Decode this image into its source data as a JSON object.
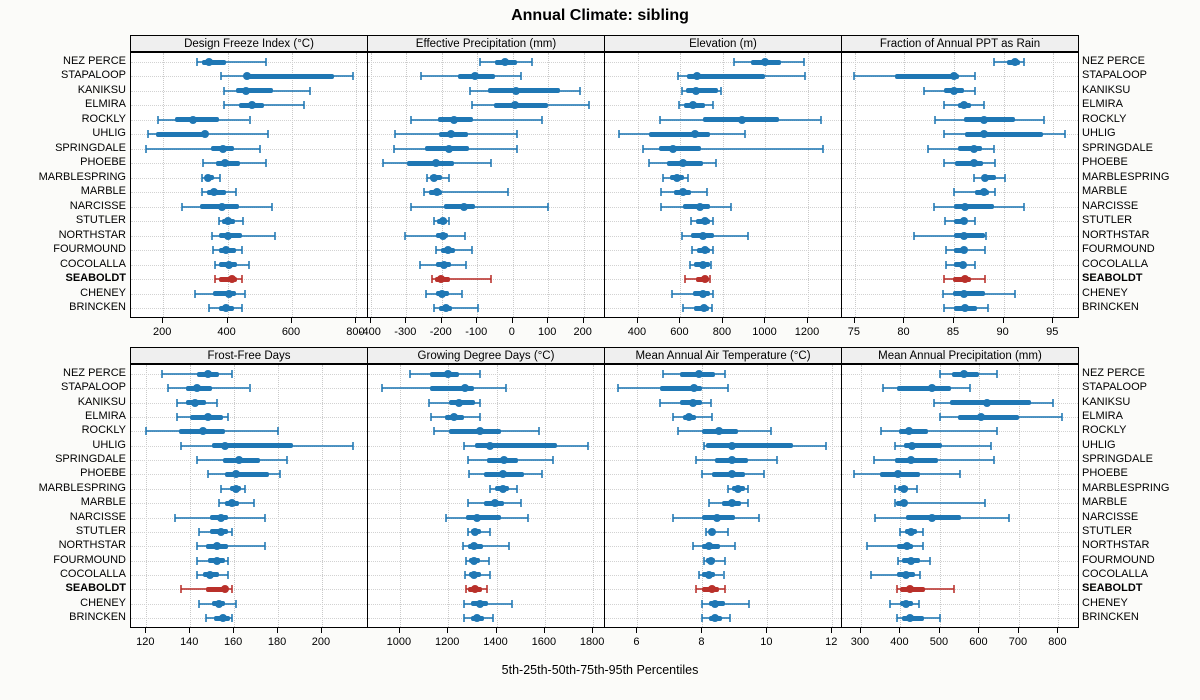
{
  "chart_data": {
    "type": "percentile-dotplot",
    "title": "Annual Climate: sibling",
    "xlabel_bottom": "5th-25th-50th-75th-95th Percentiles",
    "percentiles": [
      5,
      25,
      50,
      75,
      95
    ],
    "grid": "dotted",
    "legend_position": "none",
    "colors": {
      "series": "#1f77b4",
      "highlight": "#b9302a",
      "strip_bg": "#efefef",
      "panel_border": "#000000",
      "gridline": "#c9c9c9"
    },
    "sites": [
      "NEZ PERCE",
      "STAPALOOP",
      "KANIKSU",
      "ELMIRA",
      "ROCKLY",
      "UHLIG",
      "SPRINGDALE",
      "PHOEBE",
      "MARBLESPRING",
      "MARBLE",
      "NARCISSE",
      "STUTLER",
      "NORTHSTAR",
      "FOURMOUND",
      "COCOLALLA",
      "SEABOLDT",
      "CHENEY",
      "BRINCKEN"
    ],
    "highlight_site": "SEABOLDT",
    "panels": [
      {
        "label": "Design Freeze Index (°C)",
        "row": 0,
        "col": 0,
        "xlim": [
          100,
          836
        ],
        "ticks": [
          200,
          400,
          600,
          800
        ],
        "values": [
          [
            306,
            320,
            342,
            396,
            518
          ],
          [
            380,
            450,
            460,
            730,
            790
          ],
          [
            389,
            425,
            456,
            540,
            655
          ],
          [
            389,
            435,
            476,
            512,
            636
          ],
          [
            185,
            237,
            294,
            373,
            468
          ],
          [
            152,
            178,
            330,
            340,
            526
          ],
          [
            146,
            347,
            387,
            420,
            502
          ],
          [
            325,
            363,
            392,
            437,
            518
          ],
          [
            320,
            330,
            340,
            358,
            376
          ],
          [
            322,
            337,
            358,
            394,
            425
          ],
          [
            258,
            314,
            384,
            436,
            539
          ],
          [
            372,
            384,
            402,
            423,
            448
          ],
          [
            351,
            374,
            400,
            444,
            547
          ],
          [
            355,
            372,
            396,
            425,
            444
          ],
          [
            361,
            374,
            403,
            430,
            465
          ],
          [
            361,
            372,
            415,
            430,
            444
          ],
          [
            299,
            355,
            403,
            425,
            454
          ],
          [
            341,
            372,
            396,
            420,
            444
          ]
        ]
      },
      {
        "label": "Effective Precipitation (mm)",
        "row": 0,
        "col": 1,
        "xlim": [
          -408,
          260
        ],
        "ticks": [
          -400,
          -300,
          -200,
          -100,
          0,
          100,
          200
        ],
        "values": [
          [
            -92,
            -50,
            -22,
            11,
            54
          ],
          [
            -260,
            -155,
            -106,
            -50,
            23
          ],
          [
            -120,
            -70,
            8,
            133,
            190
          ],
          [
            -114,
            -54,
            5,
            99,
            215
          ],
          [
            -286,
            -211,
            -167,
            -111,
            82
          ],
          [
            -331,
            -208,
            -174,
            -125,
            11
          ],
          [
            -336,
            -247,
            -181,
            -123,
            11
          ],
          [
            -367,
            -299,
            -217,
            -167,
            -61
          ],
          [
            -242,
            -233,
            -221,
            -198,
            -181
          ],
          [
            -249,
            -236,
            -214,
            -198,
            -12
          ],
          [
            -286,
            -193,
            -137,
            -106,
            100
          ],
          [
            -223,
            -214,
            -198,
            -186,
            -181
          ],
          [
            -303,
            -217,
            -198,
            -183,
            -134
          ],
          [
            -217,
            -202,
            -183,
            -164,
            -114
          ],
          [
            -261,
            -217,
            -195,
            -174,
            -132
          ],
          [
            -228,
            -219,
            -202,
            -177,
            -61
          ],
          [
            -245,
            -217,
            -200,
            -179,
            -142
          ],
          [
            -223,
            -207,
            -189,
            -170,
            -97
          ]
        ]
      },
      {
        "label": "Elevation (m)",
        "row": 0,
        "col": 2,
        "xlim": [
          245,
          1360
        ],
        "ticks": [
          400,
          600,
          800,
          1000,
          1200
        ],
        "values": [
          [
            850,
            930,
            1000,
            1075,
            1180
          ],
          [
            590,
            630,
            680,
            1000,
            1185
          ],
          [
            605,
            625,
            675,
            775,
            790
          ],
          [
            595,
            615,
            660,
            715,
            755
          ],
          [
            505,
            705,
            890,
            1065,
            1260
          ],
          [
            310,
            450,
            670,
            740,
            905
          ],
          [
            425,
            500,
            565,
            695,
            1270
          ],
          [
            450,
            535,
            610,
            705,
            765
          ],
          [
            520,
            550,
            585,
            615,
            635
          ],
          [
            510,
            570,
            610,
            650,
            725
          ],
          [
            510,
            610,
            690,
            740,
            840
          ],
          [
            650,
            675,
            715,
            740,
            755
          ],
          [
            605,
            650,
            705,
            760,
            920
          ],
          [
            655,
            680,
            715,
            740,
            755
          ],
          [
            645,
            665,
            705,
            740,
            745
          ],
          [
            620,
            675,
            715,
            735,
            740
          ],
          [
            560,
            660,
            705,
            740,
            755
          ],
          [
            610,
            665,
            710,
            735,
            750
          ]
        ]
      },
      {
        "label": "Fraction of Annual PPT as Rain",
        "row": 0,
        "col": 3,
        "xlim": [
          73.7,
          97.6
        ],
        "ticks": [
          75,
          80,
          85,
          90,
          95
        ],
        "values": [
          [
            89.0,
            90.3,
            91.1,
            91.6,
            92.1
          ],
          [
            74.9,
            79.0,
            85.0,
            85.5,
            87.1
          ],
          [
            82.0,
            84.0,
            85.0,
            86.0,
            87.1
          ],
          [
            84.0,
            85.4,
            86.0,
            86.7,
            88.0
          ],
          [
            83.1,
            86.0,
            88.0,
            91.1,
            94.1
          ],
          [
            84.0,
            86.1,
            88.0,
            94.0,
            96.2
          ],
          [
            82.4,
            85.4,
            87.0,
            87.8,
            89.0
          ],
          [
            84.0,
            85.1,
            87.0,
            87.9,
            89.1
          ],
          [
            87.0,
            87.8,
            88.1,
            89.2,
            90.1
          ],
          [
            85.0,
            87.1,
            88.0,
            88.5,
            89.1
          ],
          [
            83.0,
            85.0,
            86.1,
            89.0,
            92.1
          ],
          [
            84.1,
            85.0,
            86.0,
            86.3,
            87.1
          ],
          [
            81.0,
            85.0,
            86.0,
            88.1,
            88.2
          ],
          [
            84.2,
            85.0,
            86.0,
            86.3,
            88.1
          ],
          [
            84.2,
            85.0,
            85.9,
            86.2,
            87.1
          ],
          [
            84.0,
            84.9,
            86.1,
            86.7,
            88.1
          ],
          [
            83.9,
            84.9,
            86.0,
            88.1,
            91.1
          ],
          [
            84.0,
            85.0,
            86.1,
            87.3,
            88.4
          ]
        ]
      },
      {
        "label": "Frost-Free Days",
        "row": 1,
        "col": 0,
        "xlim": [
          113,
          221
        ],
        "ticks": [
          120,
          140,
          160,
          180,
          200
        ],
        "values": [
          [
            127,
            143,
            148,
            153,
            159
          ],
          [
            130,
            138,
            143,
            150,
            167
          ],
          [
            134,
            138,
            142,
            147,
            152
          ],
          [
            134,
            140,
            148,
            155,
            157
          ],
          [
            120,
            135,
            146,
            156,
            180
          ],
          [
            136,
            150,
            156,
            187,
            214
          ],
          [
            143,
            155,
            162,
            172,
            184
          ],
          [
            148,
            156,
            161,
            176,
            181
          ],
          [
            154,
            158,
            161,
            163,
            165
          ],
          [
            153,
            156,
            159,
            162,
            169
          ],
          [
            133,
            149,
            154,
            157,
            174
          ],
          [
            144,
            149,
            154,
            157,
            159
          ],
          [
            143,
            147,
            152,
            157,
            174
          ],
          [
            143,
            148,
            152,
            156,
            157
          ],
          [
            143,
            146,
            149,
            153,
            157
          ],
          [
            136,
            147,
            156,
            157,
            159
          ],
          [
            144,
            150,
            153,
            156,
            161
          ],
          [
            147,
            151,
            155,
            158,
            159
          ]
        ]
      },
      {
        "label": "Growing Degree Days (°C)",
        "row": 1,
        "col": 1,
        "xlim": [
          868,
          1849
        ],
        "ticks": [
          1000,
          1200,
          1400,
          1600,
          1800
        ],
        "values": [
          [
            1040,
            1125,
            1200,
            1245,
            1330
          ],
          [
            925,
            1125,
            1270,
            1305,
            1440
          ],
          [
            1120,
            1205,
            1245,
            1310,
            1330
          ],
          [
            1130,
            1185,
            1225,
            1265,
            1330
          ],
          [
            1140,
            1205,
            1330,
            1420,
            1575
          ],
          [
            1265,
            1310,
            1375,
            1650,
            1780
          ],
          [
            1280,
            1360,
            1430,
            1490,
            1635
          ],
          [
            1285,
            1350,
            1425,
            1515,
            1590
          ],
          [
            1375,
            1395,
            1425,
            1450,
            1485
          ],
          [
            1280,
            1350,
            1395,
            1430,
            1500
          ],
          [
            1190,
            1275,
            1320,
            1420,
            1530
          ],
          [
            1280,
            1295,
            1310,
            1335,
            1375
          ],
          [
            1260,
            1283,
            1307,
            1345,
            1450
          ],
          [
            1275,
            1285,
            1307,
            1330,
            1370
          ],
          [
            1270,
            1285,
            1305,
            1335,
            1375
          ],
          [
            1275,
            1283,
            1310,
            1340,
            1360
          ],
          [
            1265,
            1295,
            1330,
            1363,
            1465
          ],
          [
            1265,
            1295,
            1320,
            1350,
            1385
          ]
        ]
      },
      {
        "label": "Mean Annual Air Temperature (°C)",
        "row": 1,
        "col": 2,
        "xlim": [
          5.0,
          12.3
        ],
        "ticks": [
          6,
          8,
          10,
          12
        ],
        "values": [
          [
            6.8,
            7.3,
            7.9,
            8.4,
            8.7
          ],
          [
            5.4,
            6.7,
            7.75,
            8.0,
            8.8
          ],
          [
            6.7,
            7.3,
            7.7,
            8.0,
            8.25
          ],
          [
            7.1,
            7.4,
            7.6,
            7.8,
            8.3
          ],
          [
            7.25,
            8.0,
            8.5,
            9.1,
            10.1
          ],
          [
            8.05,
            8.1,
            8.9,
            10.8,
            11.8
          ],
          [
            7.8,
            8.4,
            8.9,
            9.4,
            10.3
          ],
          [
            8.0,
            8.3,
            8.9,
            9.3,
            9.9
          ],
          [
            8.8,
            8.9,
            9.1,
            9.3,
            9.4
          ],
          [
            8.2,
            8.6,
            8.9,
            9.2,
            9.4
          ],
          [
            7.1,
            8.0,
            8.45,
            9.0,
            9.75
          ],
          [
            8.1,
            8.2,
            8.3,
            8.4,
            8.8
          ],
          [
            7.7,
            8.0,
            8.2,
            8.55,
            9.0
          ],
          [
            8.05,
            8.1,
            8.25,
            8.4,
            8.7
          ],
          [
            7.9,
            8.0,
            8.2,
            8.4,
            8.65
          ],
          [
            7.8,
            8.0,
            8.3,
            8.5,
            8.7
          ],
          [
            8.0,
            8.2,
            8.4,
            8.7,
            9.45
          ],
          [
            8.0,
            8.2,
            8.4,
            8.6,
            8.85
          ]
        ]
      },
      {
        "label": "Mean Annual Precipitation (mm)",
        "row": 1,
        "col": 3,
        "xlim": [
          252,
          852
        ],
        "ticks": [
          300,
          400,
          500,
          600,
          700,
          800
        ],
        "values": [
          [
            500,
            530,
            560,
            600,
            645
          ],
          [
            355,
            390,
            480,
            528,
            577
          ],
          [
            485,
            525,
            620,
            730,
            785
          ],
          [
            500,
            545,
            605,
            700,
            810
          ],
          [
            350,
            397,
            422,
            470,
            645
          ],
          [
            385,
            410,
            430,
            505,
            630
          ],
          [
            333,
            386,
            426,
            494,
            638
          ],
          [
            282,
            347,
            395,
            450,
            550
          ],
          [
            385,
            395,
            408,
            420,
            443
          ],
          [
            385,
            389,
            409,
            412,
            615
          ],
          [
            335,
            415,
            480,
            553,
            675
          ],
          [
            400,
            412,
            426,
            442,
            457
          ],
          [
            315,
            392,
            416,
            433,
            458
          ],
          [
            395,
            403,
            427,
            450,
            474
          ],
          [
            325,
            390,
            414,
            437,
            450
          ],
          [
            390,
            400,
            423,
            463,
            536
          ],
          [
            374,
            399,
            414,
            431,
            446
          ],
          [
            392,
            403,
            425,
            460,
            500
          ]
        ]
      }
    ]
  }
}
